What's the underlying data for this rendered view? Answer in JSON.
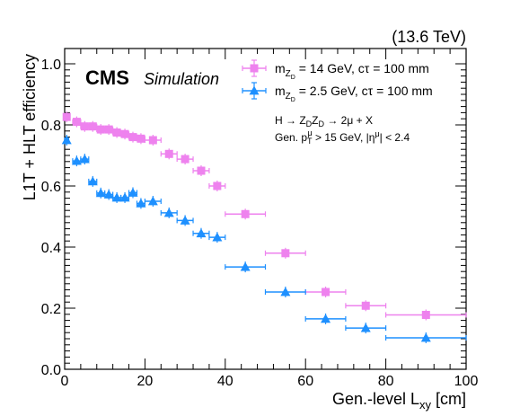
{
  "chart_data": {
    "type": "scatter",
    "experiment_label": "CMS",
    "experiment_sublabel": "Simulation",
    "energy_label": "(13.6 TeV)",
    "xlabel": "Gen.-level L",
    "xlabel_sub": "xy",
    "xlabel_unit": " [cm]",
    "ylabel": "L1T + HLT efficiency",
    "xlim": [
      0,
      100
    ],
    "ylim": [
      0,
      1.05
    ],
    "xticks": [
      "0",
      "20",
      "40",
      "60",
      "80",
      "100"
    ],
    "yticks": [
      "0.0",
      "0.2",
      "0.4",
      "0.6",
      "0.8",
      "1.0"
    ],
    "annotation_line1": "H → Z_D Z_D → 2μ + X",
    "annotation_line2": "Gen. p_T^μ > 15 GeV, |η^μ| < 2.4",
    "legend_placement": "top-right",
    "series": [
      {
        "name": "m_{Z_D} = 14 GeV, cτ = 100 mm",
        "legend_main": "m",
        "legend_sub": "Z",
        "legend_subsub": "D",
        "legend_rest": " = 14 GeV, cτ = 100 mm",
        "color": "#ee82ee",
        "marker": "square",
        "points": [
          {
            "x": 0.5,
            "xerr": 0.5,
            "y": 0.826
          },
          {
            "x": 3,
            "xerr": 1,
            "y": 0.81
          },
          {
            "x": 5,
            "xerr": 1,
            "y": 0.795
          },
          {
            "x": 7,
            "xerr": 1,
            "y": 0.795
          },
          {
            "x": 9,
            "xerr": 1,
            "y": 0.785
          },
          {
            "x": 11,
            "xerr": 1,
            "y": 0.785
          },
          {
            "x": 13,
            "xerr": 1,
            "y": 0.775
          },
          {
            "x": 15,
            "xerr": 1,
            "y": 0.77
          },
          {
            "x": 17,
            "xerr": 1,
            "y": 0.76
          },
          {
            "x": 19,
            "xerr": 1,
            "y": 0.755
          },
          {
            "x": 22,
            "xerr": 2,
            "y": 0.75
          },
          {
            "x": 26,
            "xerr": 2,
            "y": 0.705
          },
          {
            "x": 30,
            "xerr": 2,
            "y": 0.688
          },
          {
            "x": 34,
            "xerr": 2,
            "y": 0.65
          },
          {
            "x": 38,
            "xerr": 2,
            "y": 0.6
          },
          {
            "x": 45,
            "xerr": 5,
            "y": 0.508
          },
          {
            "x": 55,
            "xerr": 5,
            "y": 0.38
          },
          {
            "x": 65,
            "xerr": 5,
            "y": 0.253
          },
          {
            "x": 75,
            "xerr": 5,
            "y": 0.208
          },
          {
            "x": 90,
            "xerr": 10,
            "y": 0.178
          }
        ]
      },
      {
        "name": "m_{Z_D} = 2.5 GeV, cτ = 100 mm",
        "legend_main": "m",
        "legend_sub": "Z",
        "legend_subsub": "D",
        "legend_rest": " = 2.5 GeV, cτ = 100 mm",
        "color": "#1e90ff",
        "marker": "triangle",
        "points": [
          {
            "x": 0.5,
            "xerr": 0.5,
            "y": 0.75
          },
          {
            "x": 3,
            "xerr": 1,
            "y": 0.682
          },
          {
            "x": 5,
            "xerr": 1,
            "y": 0.688
          },
          {
            "x": 7,
            "xerr": 1,
            "y": 0.615
          },
          {
            "x": 9,
            "xerr": 1,
            "y": 0.577
          },
          {
            "x": 11,
            "xerr": 1,
            "y": 0.572
          },
          {
            "x": 13,
            "xerr": 1,
            "y": 0.562
          },
          {
            "x": 15,
            "xerr": 1,
            "y": 0.562
          },
          {
            "x": 17,
            "xerr": 1,
            "y": 0.578
          },
          {
            "x": 19,
            "xerr": 1,
            "y": 0.543
          },
          {
            "x": 22,
            "xerr": 2,
            "y": 0.55
          },
          {
            "x": 26,
            "xerr": 2,
            "y": 0.512
          },
          {
            "x": 30,
            "xerr": 2,
            "y": 0.487
          },
          {
            "x": 34,
            "xerr": 2,
            "y": 0.445
          },
          {
            "x": 38,
            "xerr": 2,
            "y": 0.432
          },
          {
            "x": 45,
            "xerr": 5,
            "y": 0.335
          },
          {
            "x": 55,
            "xerr": 5,
            "y": 0.253
          },
          {
            "x": 65,
            "xerr": 5,
            "y": 0.165
          },
          {
            "x": 75,
            "xerr": 5,
            "y": 0.135
          },
          {
            "x": 90,
            "xerr": 10,
            "y": 0.103
          }
        ]
      }
    ]
  }
}
